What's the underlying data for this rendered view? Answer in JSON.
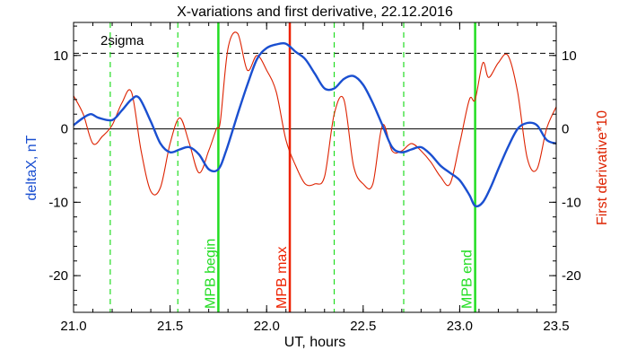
{
  "chart_data": {
    "type": "line",
    "title": "X-variations and first derivative, 22.12.2016",
    "xlabel": "UT, hours",
    "ylabel_left": "deltaX, nT",
    "ylabel_right": "First derivative*10",
    "xlim": [
      21.0,
      23.5
    ],
    "ylim": [
      -25,
      14.5
    ],
    "x_ticks": [
      "21.0",
      "21.5",
      "22.0",
      "22.5",
      "23.0",
      "23.5"
    ],
    "y_ticks": [
      "-20",
      "-10",
      "0",
      "10"
    ],
    "y_tick_values": [
      -20,
      -10,
      0,
      10
    ],
    "x_minor_step": 0.1,
    "y_minor_step": 2,
    "sigma_label": "2sigma",
    "sigma_level": 10.3,
    "zero_line": 0,
    "dashed_verticals": [
      21.19,
      21.54,
      22.35,
      22.71
    ],
    "markers": [
      {
        "label": "MPB begin",
        "x": 21.75,
        "color": "#22dd22"
      },
      {
        "label": "MPB max",
        "x": 22.12,
        "color": "#ee2200"
      },
      {
        "label": "MPB end",
        "x": 23.08,
        "color": "#22dd22"
      }
    ],
    "colors": {
      "deltaX": "#1a4fd0",
      "derivative": "#dd2200",
      "green": "#22dd22",
      "red": "#ee2200"
    },
    "series": [
      {
        "color": "#1a4fd0",
        "x": [
          21.0,
          21.05,
          21.09,
          21.13,
          21.2,
          21.25,
          21.3,
          21.34,
          21.4,
          21.45,
          21.5,
          21.55,
          21.6,
          21.65,
          21.7,
          21.75,
          21.79,
          21.85,
          21.9,
          21.95,
          22.0,
          22.05,
          22.1,
          22.15,
          22.2,
          22.25,
          22.3,
          22.35,
          22.4,
          22.45,
          22.5,
          22.55,
          22.6,
          22.65,
          22.7,
          22.75,
          22.8,
          22.85,
          22.9,
          22.95,
          23.0,
          23.05,
          23.08,
          23.12,
          23.16,
          23.2,
          23.25,
          23.3,
          23.35,
          23.4,
          23.45,
          23.5
        ],
        "values": [
          0.5,
          1.5,
          2.0,
          1.5,
          1.2,
          2.5,
          4.0,
          4.2,
          1.0,
          -2.0,
          -3.2,
          -2.8,
          -2.5,
          -3.5,
          -5.5,
          -5.5,
          -3.0,
          2.0,
          6.0,
          9.5,
          11.0,
          11.5,
          11.6,
          10.5,
          9.5,
          7.5,
          5.5,
          5.5,
          6.8,
          7.2,
          6.0,
          3.5,
          0.5,
          -2.5,
          -3.2,
          -2.8,
          -2.5,
          -3.5,
          -5.0,
          -6.0,
          -7.0,
          -9.0,
          -10.5,
          -10.0,
          -8.0,
          -5.5,
          -2.5,
          0.0,
          0.8,
          0.5,
          -1.5,
          -2.0
        ]
      },
      {
        "color": "#dd2200",
        "x": [
          21.0,
          21.05,
          21.1,
          21.15,
          21.2,
          21.25,
          21.3,
          21.35,
          21.4,
          21.45,
          21.5,
          21.55,
          21.6,
          21.65,
          21.7,
          21.74,
          21.76,
          21.8,
          21.85,
          21.9,
          21.95,
          22.0,
          22.05,
          22.1,
          22.15,
          22.2,
          22.25,
          22.3,
          22.35,
          22.4,
          22.45,
          22.5,
          22.55,
          22.6,
          22.65,
          22.7,
          22.75,
          22.8,
          22.85,
          22.9,
          22.95,
          23.0,
          23.05,
          23.08,
          23.12,
          23.15,
          23.2,
          23.25,
          23.3,
          23.35,
          23.4,
          23.45,
          23.5
        ],
        "values": [
          4.5,
          2.0,
          -2.0,
          -1.0,
          0.5,
          3.5,
          5.0,
          -3.0,
          -8.5,
          -8.0,
          -2.0,
          1.5,
          -2.0,
          -6.0,
          -3.0,
          0.0,
          1.0,
          11.0,
          13.0,
          8.0,
          10.0,
          8.0,
          5.0,
          -1.5,
          -5.0,
          -7.5,
          -7.5,
          -6.5,
          2.0,
          4.0,
          -5.0,
          -7.5,
          -7.5,
          0.5,
          -3.0,
          -3.0,
          -2.0,
          -3.0,
          -4.5,
          -6.5,
          -7.5,
          -2.0,
          4.0,
          4.0,
          9.0,
          7.0,
          9.0,
          10.0,
          5.0,
          -4.0,
          -5.5,
          0.0,
          3.0
        ]
      }
    ]
  }
}
